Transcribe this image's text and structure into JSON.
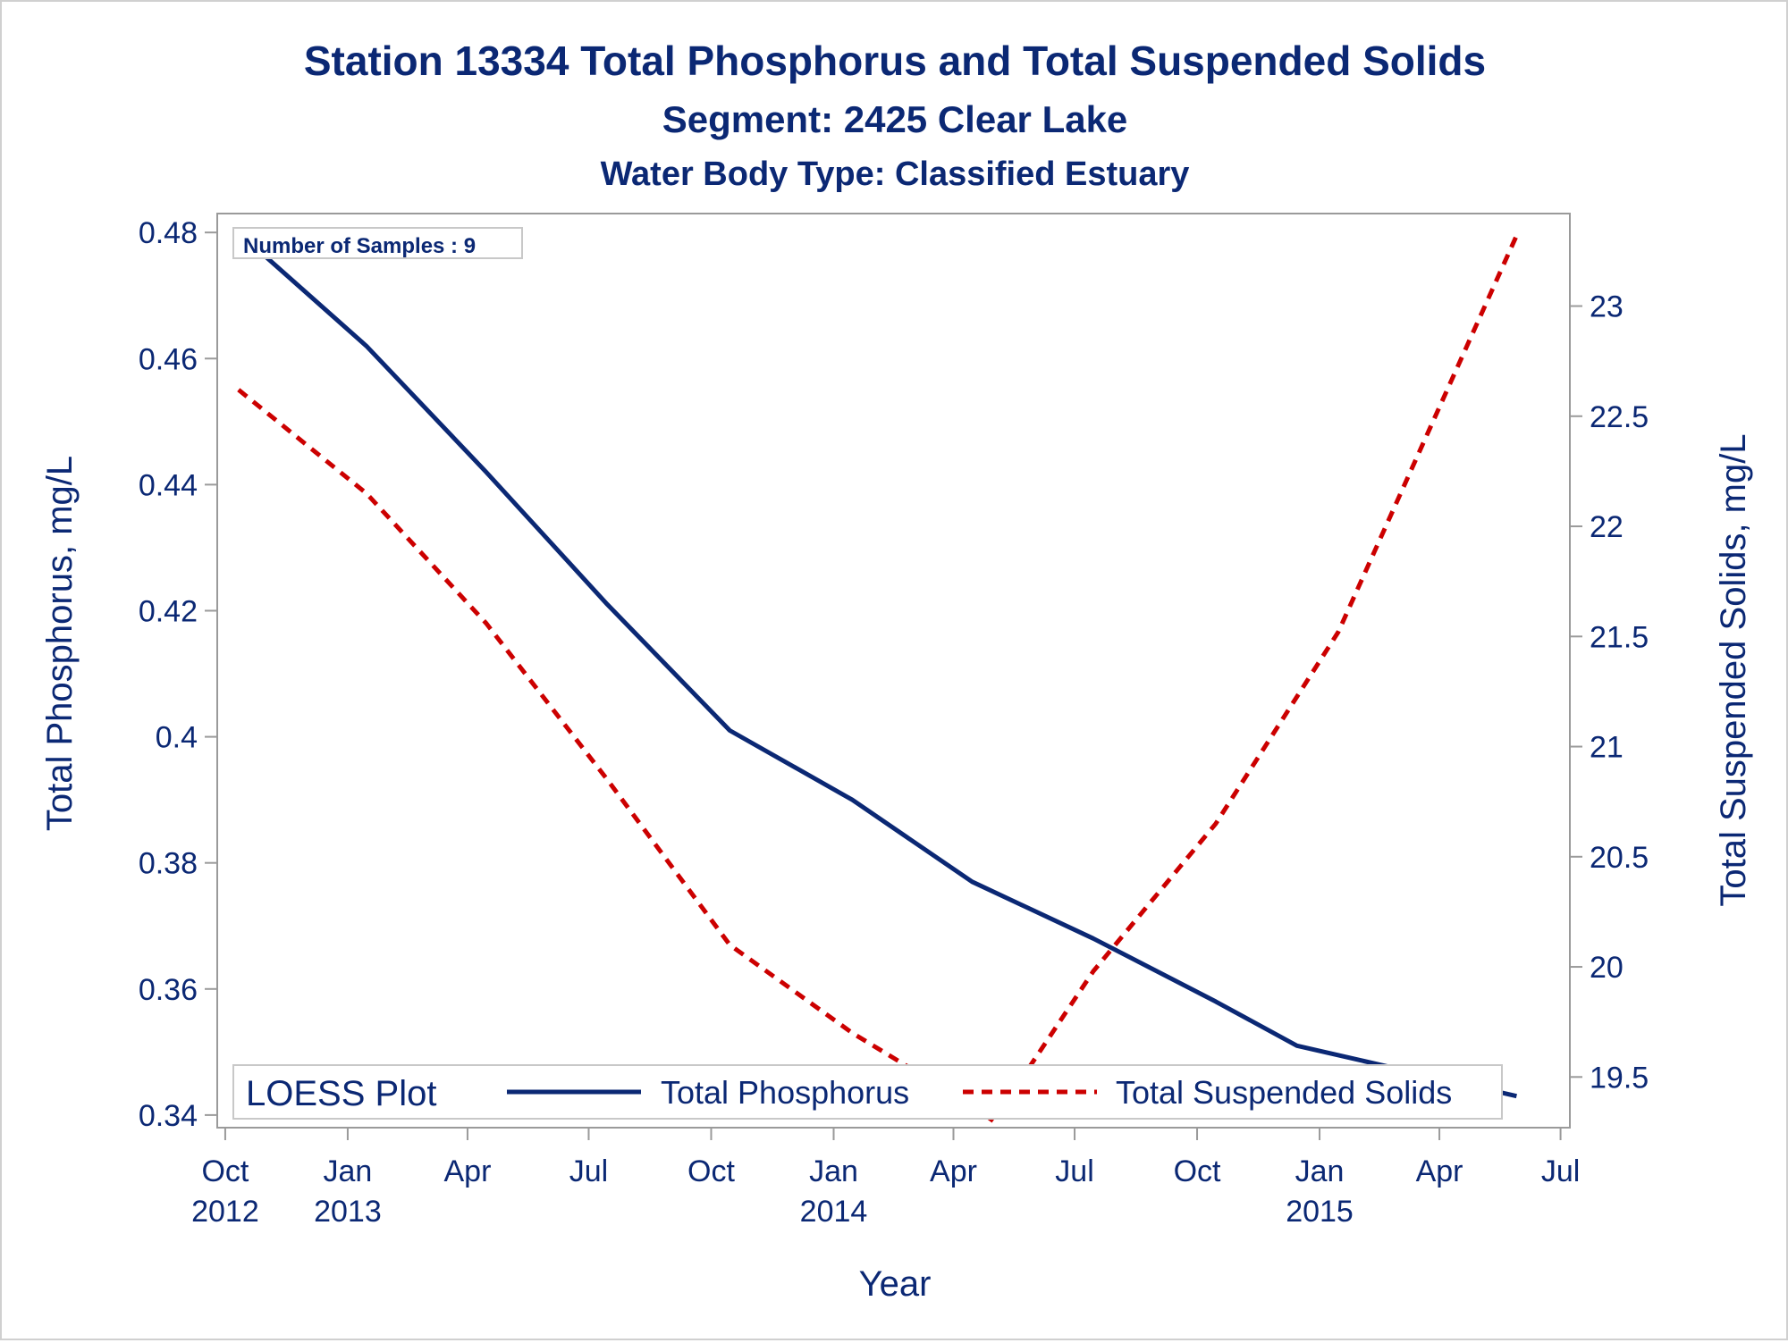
{
  "colors": {
    "text": "#0b2874",
    "phosphorus": "#0b2874",
    "solids": "#cc0000",
    "axis": "#9a9a9a",
    "frame": "#d0d0d0"
  },
  "chart_data": {
    "type": "line",
    "title": "Station 13334  Total Phosphorus and Total Suspended Solids",
    "subtitle": "Segment: 2425  Clear Lake",
    "subtitle2": "Water Body Type: Classified Estuary",
    "xlabel": "Year",
    "ylabel": "Total Phosphorus, mg/L",
    "y2label": "Total Suspended Solids, mg/L",
    "annotation": "Number of Samples : 9",
    "legend": {
      "title": "LOESS Plot",
      "placement": "bottom-inside",
      "entries": [
        "Total Phosphorus",
        "Total Suspended Solids"
      ]
    },
    "grid": false,
    "xlim": [
      "2012-09-25",
      "2015-07-08"
    ],
    "ylim": [
      0.338,
      0.483
    ],
    "y2lim": [
      19.27,
      23.42
    ],
    "x_ticks": [
      {
        "date": "2012-10-01",
        "month": "Oct",
        "year": "2012"
      },
      {
        "date": "2013-01-01",
        "month": "Jan",
        "year": "2013"
      },
      {
        "date": "2013-04-01",
        "month": "Apr",
        "year": ""
      },
      {
        "date": "2013-07-01",
        "month": "Jul",
        "year": ""
      },
      {
        "date": "2013-10-01",
        "month": "Oct",
        "year": ""
      },
      {
        "date": "2014-01-01",
        "month": "Jan",
        "year": "2014"
      },
      {
        "date": "2014-04-01",
        "month": "Apr",
        "year": ""
      },
      {
        "date": "2014-07-01",
        "month": "Jul",
        "year": ""
      },
      {
        "date": "2014-10-01",
        "month": "Oct",
        "year": ""
      },
      {
        "date": "2015-01-01",
        "month": "Jan",
        "year": "2015"
      },
      {
        "date": "2015-04-01",
        "month": "Apr",
        "year": ""
      },
      {
        "date": "2015-07-01",
        "month": "Jul",
        "year": ""
      }
    ],
    "y_ticks": [
      "0.34",
      "0.36",
      "0.38",
      "0.4",
      "0.42",
      "0.44",
      "0.46",
      "0.48"
    ],
    "y2_ticks": [
      "19.5",
      "20",
      "20.5",
      "21",
      "21.5",
      "22",
      "22.5",
      "23"
    ],
    "series": [
      {
        "name": "Total Phosphorus",
        "axis": "left",
        "style": "solid",
        "x": [
          "2012-10-11",
          "2013-01-15",
          "2013-04-15",
          "2013-07-15",
          "2013-10-15",
          "2014-01-15",
          "2014-04-15",
          "2014-07-15",
          "2014-10-15",
          "2014-12-15",
          "2015-05-29"
        ],
        "y": [
          0.48,
          0.462,
          0.442,
          0.421,
          0.401,
          0.39,
          0.377,
          0.368,
          0.358,
          0.351,
          0.343
        ]
      },
      {
        "name": "Total Suspended Solids",
        "axis": "right",
        "style": "dashed",
        "x": [
          "2012-10-11",
          "2013-01-15",
          "2013-04-15",
          "2013-07-15",
          "2013-10-15",
          "2014-01-15",
          "2014-04-15",
          "2014-05-01",
          "2014-07-15",
          "2014-10-15",
          "2015-01-15",
          "2015-05-29"
        ],
        "y": [
          22.62,
          22.15,
          21.56,
          20.85,
          20.1,
          19.7,
          19.37,
          19.3,
          19.98,
          20.65,
          21.52,
          23.32
        ]
      }
    ]
  }
}
